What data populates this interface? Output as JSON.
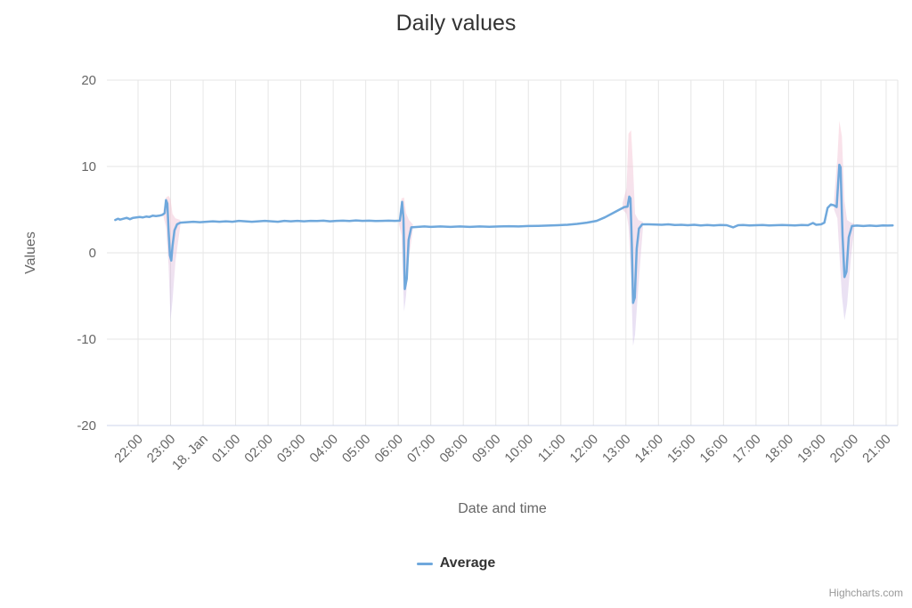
{
  "credits": "Highcharts.com",
  "chart_data": {
    "type": "line",
    "title": "Daily values",
    "xlabel": "Date and time",
    "ylabel": "Values",
    "ylim": [
      -20,
      20
    ],
    "y_ticks": [
      -20,
      -10,
      0,
      10,
      20
    ],
    "x_tick_labels": [
      "22:00",
      "23:00",
      "18. Jan",
      "01:00",
      "02:00",
      "03:00",
      "04:00",
      "05:00",
      "06:00",
      "07:00",
      "08:00",
      "09:00",
      "10:00",
      "11:00",
      "12:00",
      "13:00",
      "14:00",
      "15:00",
      "16:00",
      "17:00",
      "18:00",
      "19:00",
      "20:00",
      "21:00"
    ],
    "grid": true,
    "grid_color": "#e6e6e6",
    "axis_line_color": "#ccd6eb",
    "legend": {
      "position": "bottom",
      "items": [
        {
          "label": "Average",
          "color": "#6fa8dc"
        }
      ]
    },
    "band_style": {
      "top": "#f8c0cd",
      "bottom": "#cabce8",
      "opacity": 0.45
    },
    "series": [
      {
        "name": "Average",
        "color": "#6fa8dc",
        "x_is_hours_from_first_tick": true,
        "points": [
          [
            -0.7,
            3.8
          ],
          [
            -0.62,
            3.95
          ],
          [
            -0.55,
            3.85
          ],
          [
            -0.45,
            3.95
          ],
          [
            -0.35,
            4.05
          ],
          [
            -0.25,
            3.9
          ],
          [
            -0.15,
            4.05
          ],
          [
            -0.05,
            4.1
          ],
          [
            0.05,
            4.15
          ],
          [
            0.15,
            4.1
          ],
          [
            0.25,
            4.2
          ],
          [
            0.35,
            4.15
          ],
          [
            0.45,
            4.3
          ],
          [
            0.55,
            4.25
          ],
          [
            0.65,
            4.3
          ],
          [
            0.75,
            4.4
          ],
          [
            0.82,
            4.6
          ],
          [
            0.86,
            6.1
          ],
          [
            0.9,
            5.7
          ],
          [
            0.94,
            2.5
          ],
          [
            0.98,
            -0.3
          ],
          [
            1.02,
            -0.9
          ],
          [
            1.06,
            0.8
          ],
          [
            1.12,
            2.6
          ],
          [
            1.2,
            3.3
          ],
          [
            1.3,
            3.5
          ],
          [
            1.5,
            3.55
          ],
          [
            1.7,
            3.6
          ],
          [
            1.9,
            3.55
          ],
          [
            2.1,
            3.6
          ],
          [
            2.3,
            3.65
          ],
          [
            2.5,
            3.6
          ],
          [
            2.7,
            3.65
          ],
          [
            2.9,
            3.6
          ],
          [
            3.1,
            3.7
          ],
          [
            3.3,
            3.65
          ],
          [
            3.5,
            3.6
          ],
          [
            3.7,
            3.65
          ],
          [
            3.9,
            3.7
          ],
          [
            4.1,
            3.65
          ],
          [
            4.3,
            3.6
          ],
          [
            4.5,
            3.7
          ],
          [
            4.7,
            3.65
          ],
          [
            4.9,
            3.7
          ],
          [
            5.1,
            3.65
          ],
          [
            5.3,
            3.7
          ],
          [
            5.5,
            3.68
          ],
          [
            5.7,
            3.72
          ],
          [
            5.9,
            3.65
          ],
          [
            6.1,
            3.7
          ],
          [
            6.3,
            3.72
          ],
          [
            6.5,
            3.68
          ],
          [
            6.7,
            3.75
          ],
          [
            6.9,
            3.7
          ],
          [
            7.1,
            3.72
          ],
          [
            7.3,
            3.68
          ],
          [
            7.5,
            3.7
          ],
          [
            7.7,
            3.72
          ],
          [
            7.9,
            3.7
          ],
          [
            8.05,
            3.72
          ],
          [
            8.12,
            5.9
          ],
          [
            8.16,
            4.0
          ],
          [
            8.2,
            -4.2
          ],
          [
            8.26,
            -3.0
          ],
          [
            8.32,
            1.5
          ],
          [
            8.4,
            2.95
          ],
          [
            8.6,
            3.0
          ],
          [
            8.8,
            3.05
          ],
          [
            9.0,
            3.0
          ],
          [
            9.3,
            3.05
          ],
          [
            9.6,
            3.0
          ],
          [
            9.9,
            3.05
          ],
          [
            10.2,
            3.0
          ],
          [
            10.5,
            3.05
          ],
          [
            10.8,
            3.02
          ],
          [
            11.1,
            3.05
          ],
          [
            11.4,
            3.08
          ],
          [
            11.7,
            3.05
          ],
          [
            12.0,
            3.1
          ],
          [
            12.3,
            3.12
          ],
          [
            12.6,
            3.15
          ],
          [
            12.9,
            3.2
          ],
          [
            13.2,
            3.25
          ],
          [
            13.5,
            3.35
          ],
          [
            13.8,
            3.5
          ],
          [
            14.1,
            3.7
          ],
          [
            14.35,
            4.1
          ],
          [
            14.6,
            4.6
          ],
          [
            14.8,
            5.0
          ],
          [
            14.95,
            5.3
          ],
          [
            15.05,
            5.35
          ],
          [
            15.1,
            6.5
          ],
          [
            15.14,
            6.3
          ],
          [
            15.18,
            1.0
          ],
          [
            15.22,
            -5.8
          ],
          [
            15.27,
            -5.2
          ],
          [
            15.33,
            0.5
          ],
          [
            15.4,
            2.8
          ],
          [
            15.5,
            3.3
          ],
          [
            15.7,
            3.3
          ],
          [
            15.9,
            3.28
          ],
          [
            16.1,
            3.25
          ],
          [
            16.3,
            3.3
          ],
          [
            16.5,
            3.22
          ],
          [
            16.7,
            3.25
          ],
          [
            16.9,
            3.2
          ],
          [
            17.1,
            3.25
          ],
          [
            17.3,
            3.18
          ],
          [
            17.5,
            3.22
          ],
          [
            17.7,
            3.18
          ],
          [
            17.9,
            3.22
          ],
          [
            18.1,
            3.2
          ],
          [
            18.3,
            2.95
          ],
          [
            18.45,
            3.2
          ],
          [
            18.6,
            3.22
          ],
          [
            18.8,
            3.18
          ],
          [
            19.0,
            3.2
          ],
          [
            19.2,
            3.22
          ],
          [
            19.4,
            3.18
          ],
          [
            19.6,
            3.2
          ],
          [
            19.8,
            3.22
          ],
          [
            20.0,
            3.2
          ],
          [
            20.2,
            3.18
          ],
          [
            20.4,
            3.22
          ],
          [
            20.6,
            3.2
          ],
          [
            20.75,
            3.45
          ],
          [
            20.85,
            3.25
          ],
          [
            21.0,
            3.3
          ],
          [
            21.1,
            3.5
          ],
          [
            21.2,
            5.2
          ],
          [
            21.3,
            5.6
          ],
          [
            21.4,
            5.5
          ],
          [
            21.48,
            5.3
          ],
          [
            21.56,
            10.2
          ],
          [
            21.6,
            9.9
          ],
          [
            21.66,
            2.0
          ],
          [
            21.72,
            -2.8
          ],
          [
            21.78,
            -2.2
          ],
          [
            21.85,
            1.8
          ],
          [
            21.95,
            3.1
          ],
          [
            22.1,
            3.15
          ],
          [
            22.3,
            3.1
          ],
          [
            22.5,
            3.15
          ],
          [
            22.7,
            3.1
          ],
          [
            22.9,
            3.18
          ],
          [
            23.05,
            3.15
          ],
          [
            23.2,
            3.18
          ]
        ]
      }
    ],
    "range_bands": [
      {
        "name": "error-band-2300",
        "points": [
          [
            0.78,
            4.2,
            4.9
          ],
          [
            0.86,
            3.0,
            6.4
          ],
          [
            0.94,
            -1.5,
            6.6
          ],
          [
            1.0,
            -7.8,
            6.2
          ],
          [
            1.06,
            -5.5,
            4.5
          ],
          [
            1.15,
            -1.0,
            4.0
          ],
          [
            1.3,
            3.2,
            3.8
          ]
        ]
      },
      {
        "name": "error-band-0600",
        "points": [
          [
            8.02,
            3.4,
            4.0
          ],
          [
            8.1,
            2.0,
            6.3
          ],
          [
            8.18,
            -6.8,
            6.4
          ],
          [
            8.24,
            -5.0,
            4.6
          ],
          [
            8.33,
            -0.5,
            3.8
          ],
          [
            8.45,
            2.7,
            3.3
          ]
        ]
      },
      {
        "name": "error-band-1300",
        "points": [
          [
            14.9,
            5.0,
            5.8
          ],
          [
            15.02,
            4.5,
            7.5
          ],
          [
            15.08,
            3.0,
            13.8
          ],
          [
            15.16,
            -3.0,
            14.2
          ],
          [
            15.22,
            -10.8,
            10.0
          ],
          [
            15.28,
            -9.5,
            4.5
          ],
          [
            15.38,
            -4.0,
            3.8
          ],
          [
            15.52,
            2.8,
            3.6
          ]
        ]
      },
      {
        "name": "error-band-1930",
        "points": [
          [
            21.4,
            5.0,
            6.2
          ],
          [
            21.5,
            4.0,
            11.0
          ],
          [
            21.56,
            0.0,
            15.3
          ],
          [
            21.64,
            -5.0,
            13.5
          ],
          [
            21.72,
            -7.8,
            6.0
          ],
          [
            21.8,
            -6.0,
            3.8
          ],
          [
            21.92,
            -0.5,
            3.5
          ],
          [
            22.02,
            2.8,
            3.4
          ]
        ]
      }
    ]
  }
}
